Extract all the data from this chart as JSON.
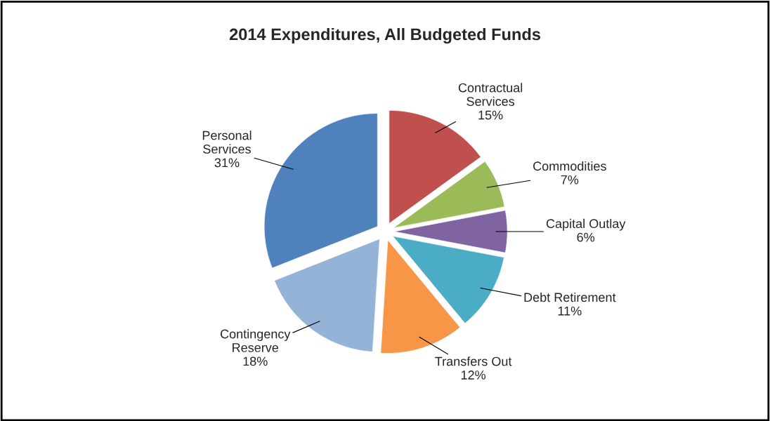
{
  "chart_data": {
    "type": "pie",
    "title": "2014 Expenditures, All Budgeted Funds",
    "categories": [
      "Contractual\nServices",
      "Commodities",
      "Capital Outlay",
      "Debt Retirement",
      "Transfers Out",
      "Contingency\nReserve",
      "Personal\nServices"
    ],
    "values": [
      15,
      7,
      6,
      11,
      12,
      18,
      31
    ],
    "value_labels": [
      "15%",
      "7%",
      "6%",
      "11%",
      "12%",
      "18%",
      "31%"
    ],
    "colors": [
      "#c0504d",
      "#9bbb59",
      "#8064a2",
      "#4bacc6",
      "#f79646",
      "#95b3d7",
      "#4f81bd"
    ],
    "legend": false
  }
}
